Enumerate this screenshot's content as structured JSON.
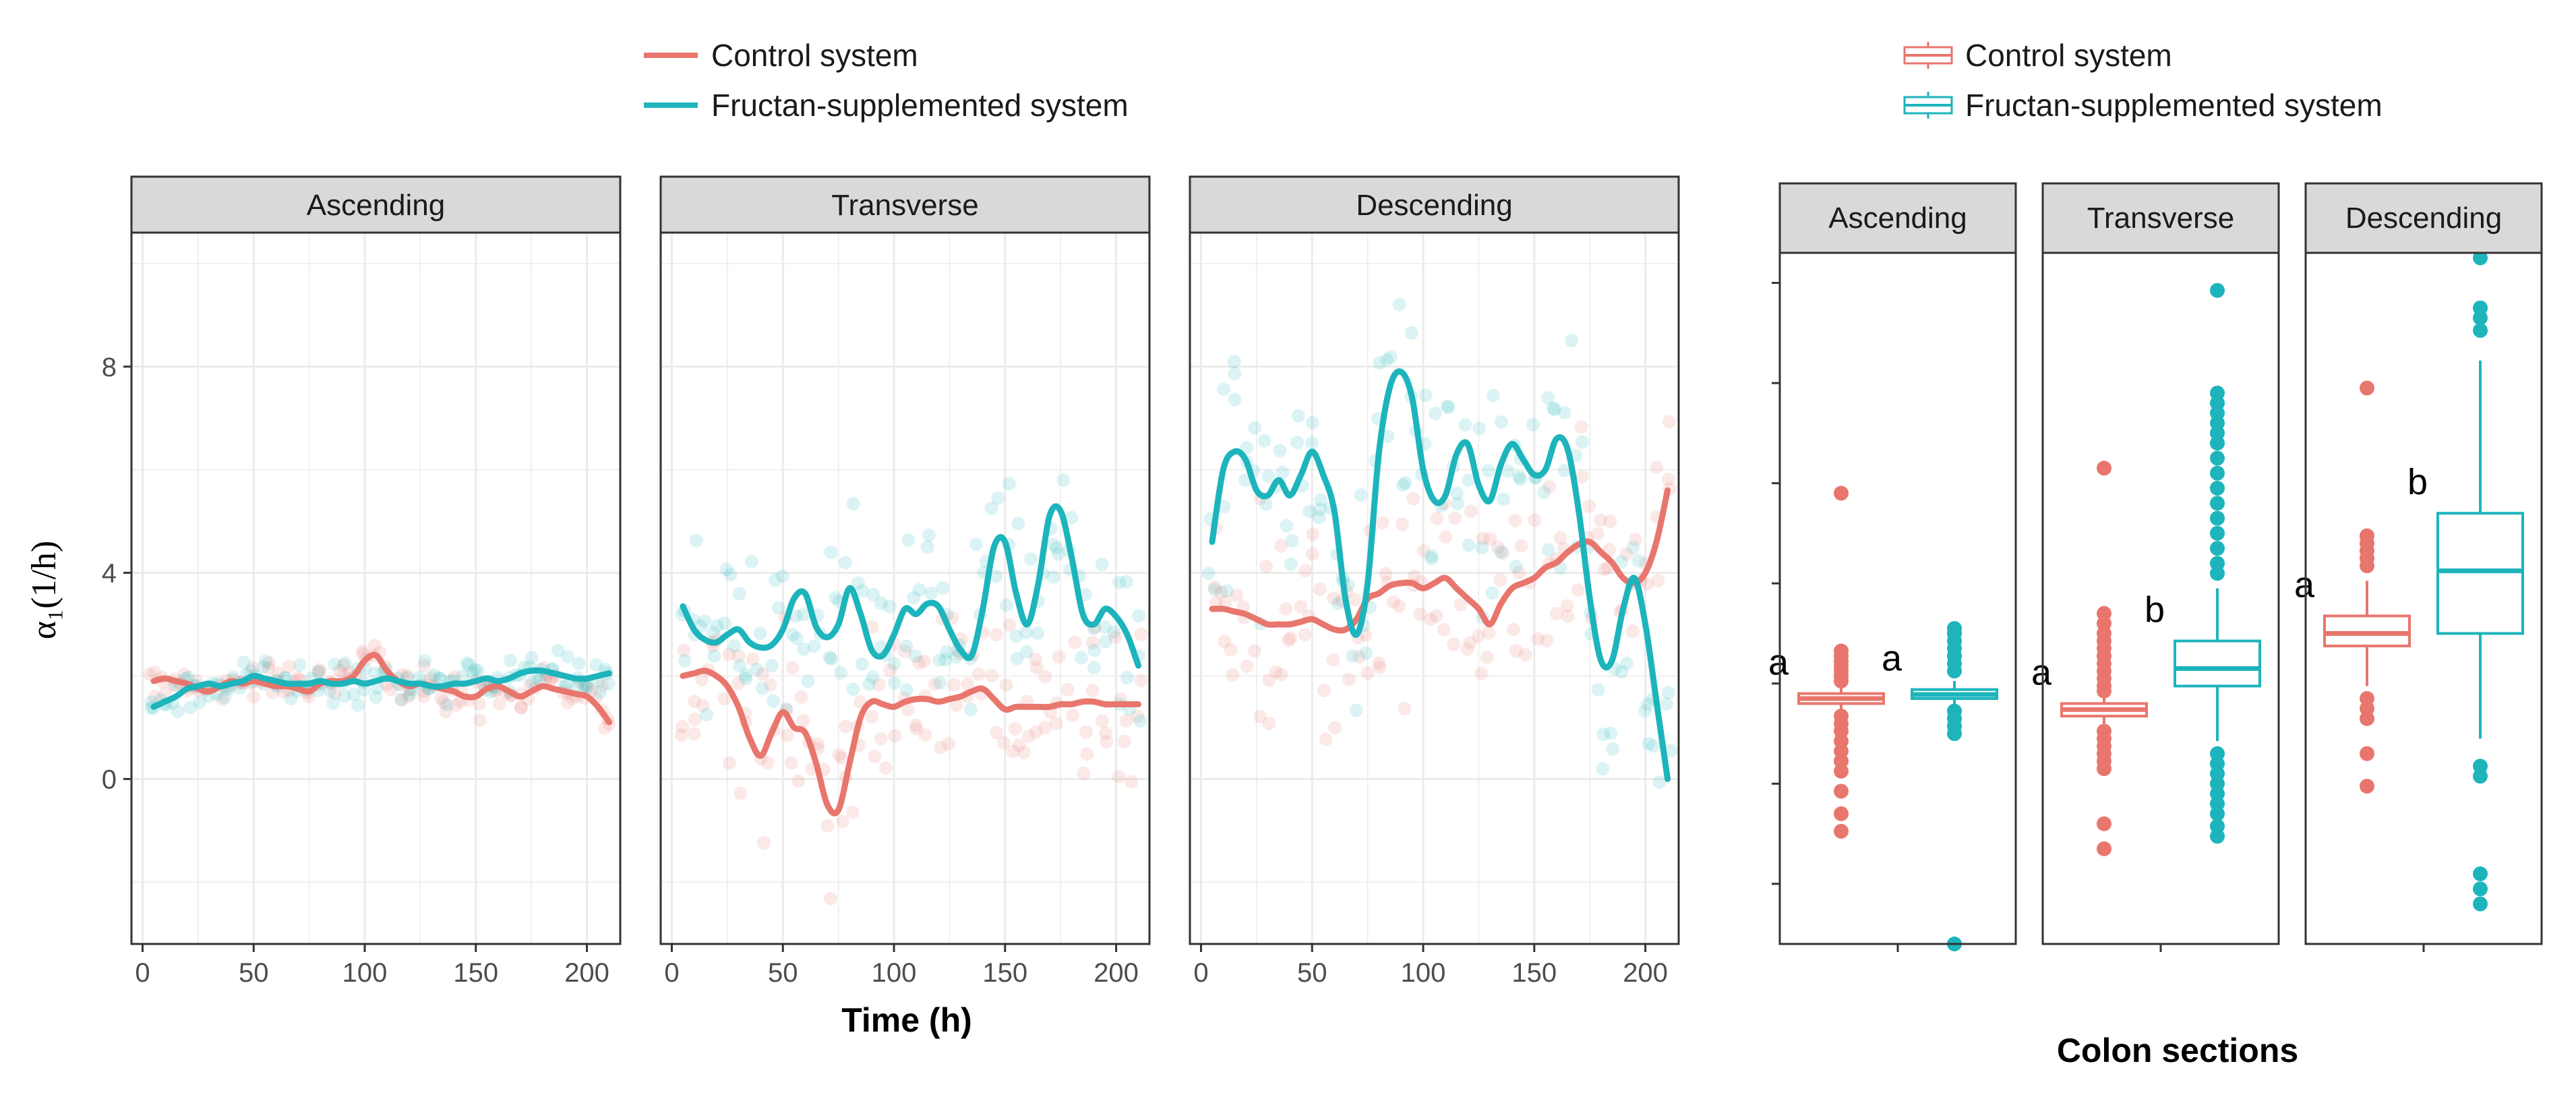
{
  "colors": {
    "control": "#E8766D",
    "fructan": "#1DB4BC",
    "strip_bg": "#D9D9D9",
    "grid": "#EBEBEB"
  },
  "legend_left": {
    "items": [
      "Control system",
      "Fructan-supplemented system"
    ]
  },
  "legend_right": {
    "items": [
      "Control system",
      "Fructan-supplemented system"
    ]
  },
  "ylabel": "α₁(1/h)",
  "chart_data": [
    {
      "type": "line",
      "xlabel": "Time (h)",
      "ylabel": "α₁(1/h)",
      "xlim": [
        -5,
        215
      ],
      "ylim": [
        -3.2,
        10.6
      ],
      "x_ticks": [
        0,
        50,
        100,
        150,
        200
      ],
      "y_ticks": [
        0,
        4,
        8
      ],
      "panels": [
        {
          "name": "Ascending",
          "series": [
            {
              "name": "Control system",
              "x": [
                5,
                10,
                15,
                20,
                25,
                30,
                35,
                40,
                45,
                50,
                55,
                60,
                65,
                70,
                75,
                80,
                85,
                90,
                95,
                100,
                105,
                110,
                115,
                120,
                125,
                130,
                135,
                140,
                145,
                150,
                155,
                160,
                165,
                170,
                175,
                180,
                185,
                190,
                195,
                200,
                205,
                210
              ],
              "y": [
                1.9,
                1.95,
                1.9,
                1.85,
                1.75,
                1.7,
                1.8,
                1.9,
                1.85,
                1.9,
                1.85,
                1.8,
                1.8,
                1.75,
                1.7,
                1.85,
                1.9,
                1.9,
                2.0,
                2.3,
                2.4,
                2.1,
                1.9,
                1.8,
                1.85,
                1.8,
                1.75,
                1.7,
                1.6,
                1.6,
                1.75,
                1.8,
                1.7,
                1.6,
                1.7,
                1.8,
                1.75,
                1.7,
                1.65,
                1.6,
                1.4,
                1.1
              ]
            },
            {
              "name": "Fructan-supplemented system",
              "x": [
                5,
                10,
                15,
                20,
                25,
                30,
                35,
                40,
                45,
                50,
                55,
                60,
                65,
                70,
                75,
                80,
                85,
                90,
                95,
                100,
                105,
                110,
                115,
                120,
                125,
                130,
                135,
                140,
                145,
                150,
                155,
                160,
                165,
                170,
                175,
                180,
                185,
                190,
                195,
                200,
                205,
                210
              ],
              "y": [
                1.4,
                1.5,
                1.6,
                1.75,
                1.8,
                1.85,
                1.8,
                1.85,
                1.9,
                2.0,
                1.95,
                1.9,
                1.85,
                1.85,
                1.85,
                1.9,
                1.85,
                1.85,
                1.9,
                1.85,
                1.9,
                1.95,
                1.9,
                1.85,
                1.85,
                1.8,
                1.8,
                1.85,
                1.85,
                1.9,
                1.95,
                1.9,
                1.95,
                2.05,
                2.1,
                2.1,
                2.05,
                2.0,
                1.95,
                1.95,
                2.0,
                2.05
              ]
            }
          ]
        },
        {
          "name": "Transverse",
          "series": [
            {
              "name": "Control system",
              "x": [
                5,
                10,
                15,
                20,
                25,
                30,
                35,
                40,
                45,
                50,
                55,
                60,
                65,
                70,
                75,
                80,
                85,
                90,
                95,
                100,
                105,
                110,
                115,
                120,
                125,
                130,
                135,
                140,
                145,
                150,
                155,
                160,
                165,
                170,
                175,
                180,
                185,
                190,
                195,
                200,
                205,
                210
              ],
              "y": [
                2.0,
                2.05,
                2.1,
                2.0,
                1.8,
                1.4,
                0.8,
                0.45,
                0.9,
                1.3,
                1.0,
                0.9,
                0.3,
                -0.5,
                -0.6,
                0.3,
                1.2,
                1.5,
                1.45,
                1.4,
                1.5,
                1.55,
                1.55,
                1.5,
                1.55,
                1.6,
                1.7,
                1.75,
                1.55,
                1.35,
                1.4,
                1.4,
                1.4,
                1.4,
                1.45,
                1.45,
                1.5,
                1.5,
                1.45,
                1.45,
                1.45,
                1.45
              ]
            },
            {
              "name": "Fructan-supplemented system",
              "x": [
                5,
                10,
                15,
                20,
                25,
                30,
                35,
                40,
                45,
                50,
                55,
                60,
                65,
                70,
                75,
                80,
                85,
                90,
                95,
                100,
                105,
                110,
                115,
                120,
                125,
                130,
                135,
                140,
                145,
                150,
                155,
                160,
                165,
                170,
                175,
                180,
                185,
                190,
                195,
                200,
                205,
                210
              ],
              "y": [
                3.35,
                2.9,
                2.7,
                2.65,
                2.8,
                2.9,
                2.65,
                2.55,
                2.6,
                2.9,
                3.5,
                3.6,
                2.95,
                2.75,
                3.0,
                3.7,
                3.2,
                2.5,
                2.4,
                2.8,
                3.3,
                3.2,
                3.4,
                3.35,
                2.9,
                2.5,
                2.4,
                3.3,
                4.5,
                4.6,
                3.6,
                3.0,
                3.8,
                5.1,
                5.2,
                4.3,
                3.2,
                3.0,
                3.3,
                3.15,
                2.8,
                2.2
              ]
            }
          ]
        },
        {
          "name": "Descending",
          "series": [
            {
              "name": "Control system",
              "x": [
                5,
                10,
                15,
                20,
                25,
                30,
                35,
                40,
                45,
                50,
                55,
                60,
                65,
                70,
                75,
                80,
                85,
                90,
                95,
                100,
                105,
                110,
                115,
                120,
                125,
                130,
                135,
                140,
                145,
                150,
                155,
                160,
                165,
                170,
                175,
                180,
                185,
                190,
                195,
                200,
                205,
                210
              ],
              "y": [
                3.3,
                3.3,
                3.25,
                3.2,
                3.1,
                3.0,
                3.0,
                3.0,
                3.05,
                3.1,
                3.0,
                2.9,
                2.9,
                3.1,
                3.5,
                3.6,
                3.75,
                3.8,
                3.8,
                3.7,
                3.8,
                3.9,
                3.7,
                3.5,
                3.3,
                3.0,
                3.4,
                3.7,
                3.8,
                3.9,
                4.1,
                4.2,
                4.4,
                4.55,
                4.6,
                4.4,
                4.2,
                3.9,
                3.8,
                4.0,
                4.6,
                5.6
              ]
            },
            {
              "name": "Fructan-supplemented system",
              "x": [
                5,
                10,
                15,
                20,
                25,
                30,
                35,
                40,
                45,
                50,
                55,
                60,
                65,
                70,
                75,
                80,
                85,
                90,
                95,
                100,
                105,
                110,
                115,
                120,
                125,
                130,
                135,
                140,
                145,
                150,
                155,
                160,
                165,
                170,
                175,
                180,
                185,
                190,
                195,
                200,
                205,
                210
              ],
              "y": [
                4.6,
                6.0,
                6.35,
                6.2,
                5.6,
                5.5,
                5.8,
                5.5,
                5.9,
                6.35,
                5.9,
                5.2,
                3.5,
                2.8,
                3.8,
                6.3,
                7.6,
                7.9,
                7.4,
                6.0,
                5.4,
                5.5,
                6.3,
                6.5,
                5.7,
                5.4,
                6.1,
                6.5,
                6.2,
                5.9,
                6.0,
                6.6,
                6.4,
                5.2,
                3.5,
                2.3,
                2.3,
                3.3,
                3.9,
                3.0,
                1.5,
                0.0
              ]
            }
          ]
        }
      ]
    },
    {
      "type": "box",
      "xlabel": "Colon sections",
      "ylim": [
        -3.2,
        10.6
      ],
      "panels": [
        {
          "name": "Ascending",
          "boxes": [
            {
              "name": "Control system",
              "q1": 1.6,
              "median": 1.7,
              "q3": 1.8,
              "whisker_low": 1.45,
              "whisker_high": 1.95,
              "letter": "a",
              "outliers": [
                5.8,
                2.65,
                2.55,
                2.45,
                2.35,
                2.25,
                2.15,
                2.05,
                1.35,
                1.2,
                1.05,
                0.85,
                0.65,
                0.45,
                0.25,
                -0.15,
                -0.6,
                -0.95
              ]
            },
            {
              "name": "Fructan-supplemented system",
              "q1": 1.7,
              "median": 1.78,
              "q3": 1.88,
              "whisker_low": 1.55,
              "whisker_high": 2.05,
              "letter": "a",
              "outliers": [
                3.1,
                3.0,
                2.85,
                2.7,
                2.55,
                2.4,
                2.25,
                1.45,
                1.3,
                1.15,
                1.0,
                -3.2
              ]
            }
          ]
        },
        {
          "name": "Transverse",
          "boxes": [
            {
              "name": "Control system",
              "q1": 1.35,
              "median": 1.48,
              "q3": 1.6,
              "whisker_low": 1.2,
              "whisker_high": 1.75,
              "letter": "a",
              "outliers": [
                6.3,
                3.4,
                3.2,
                3.0,
                2.85,
                2.7,
                2.55,
                2.4,
                2.25,
                2.1,
                1.95,
                1.85,
                1.05,
                0.9,
                0.75,
                0.6,
                0.45,
                0.3,
                -0.8,
                -1.3
              ]
            },
            {
              "name": "Fructan-supplemented system",
              "q1": 1.95,
              "median": 2.3,
              "q3": 2.85,
              "whisker_low": 0.85,
              "whisker_high": 3.9,
              "letter": "b",
              "outliers": [
                9.85,
                7.8,
                7.6,
                7.4,
                7.2,
                7.0,
                6.8,
                6.5,
                6.2,
                5.9,
                5.6,
                5.3,
                5.0,
                4.7,
                4.4,
                4.2,
                0.6,
                0.4,
                0.2,
                0.0,
                -0.2,
                -0.4,
                -0.6,
                -0.85,
                -1.05
              ]
            }
          ]
        },
        {
          "name": "Descending",
          "boxes": [
            {
              "name": "Control system",
              "q1": 2.75,
              "median": 3.0,
              "q3": 3.35,
              "whisker_low": 1.95,
              "whisker_high": 4.05,
              "letter": "a",
              "outliers": [
                7.9,
                4.95,
                4.8,
                4.65,
                4.5,
                4.35,
                1.7,
                1.5,
                1.3,
                0.6,
                -0.05
              ]
            },
            {
              "name": "Fructan-supplemented system",
              "q1": 3.0,
              "median": 4.25,
              "q3": 5.4,
              "whisker_low": 0.9,
              "whisker_high": 8.45,
              "letter": "b",
              "outliers": [
                10.5,
                9.5,
                9.3,
                9.05,
                0.35,
                0.15,
                -1.8,
                -2.1,
                -2.4
              ]
            }
          ]
        }
      ]
    }
  ]
}
